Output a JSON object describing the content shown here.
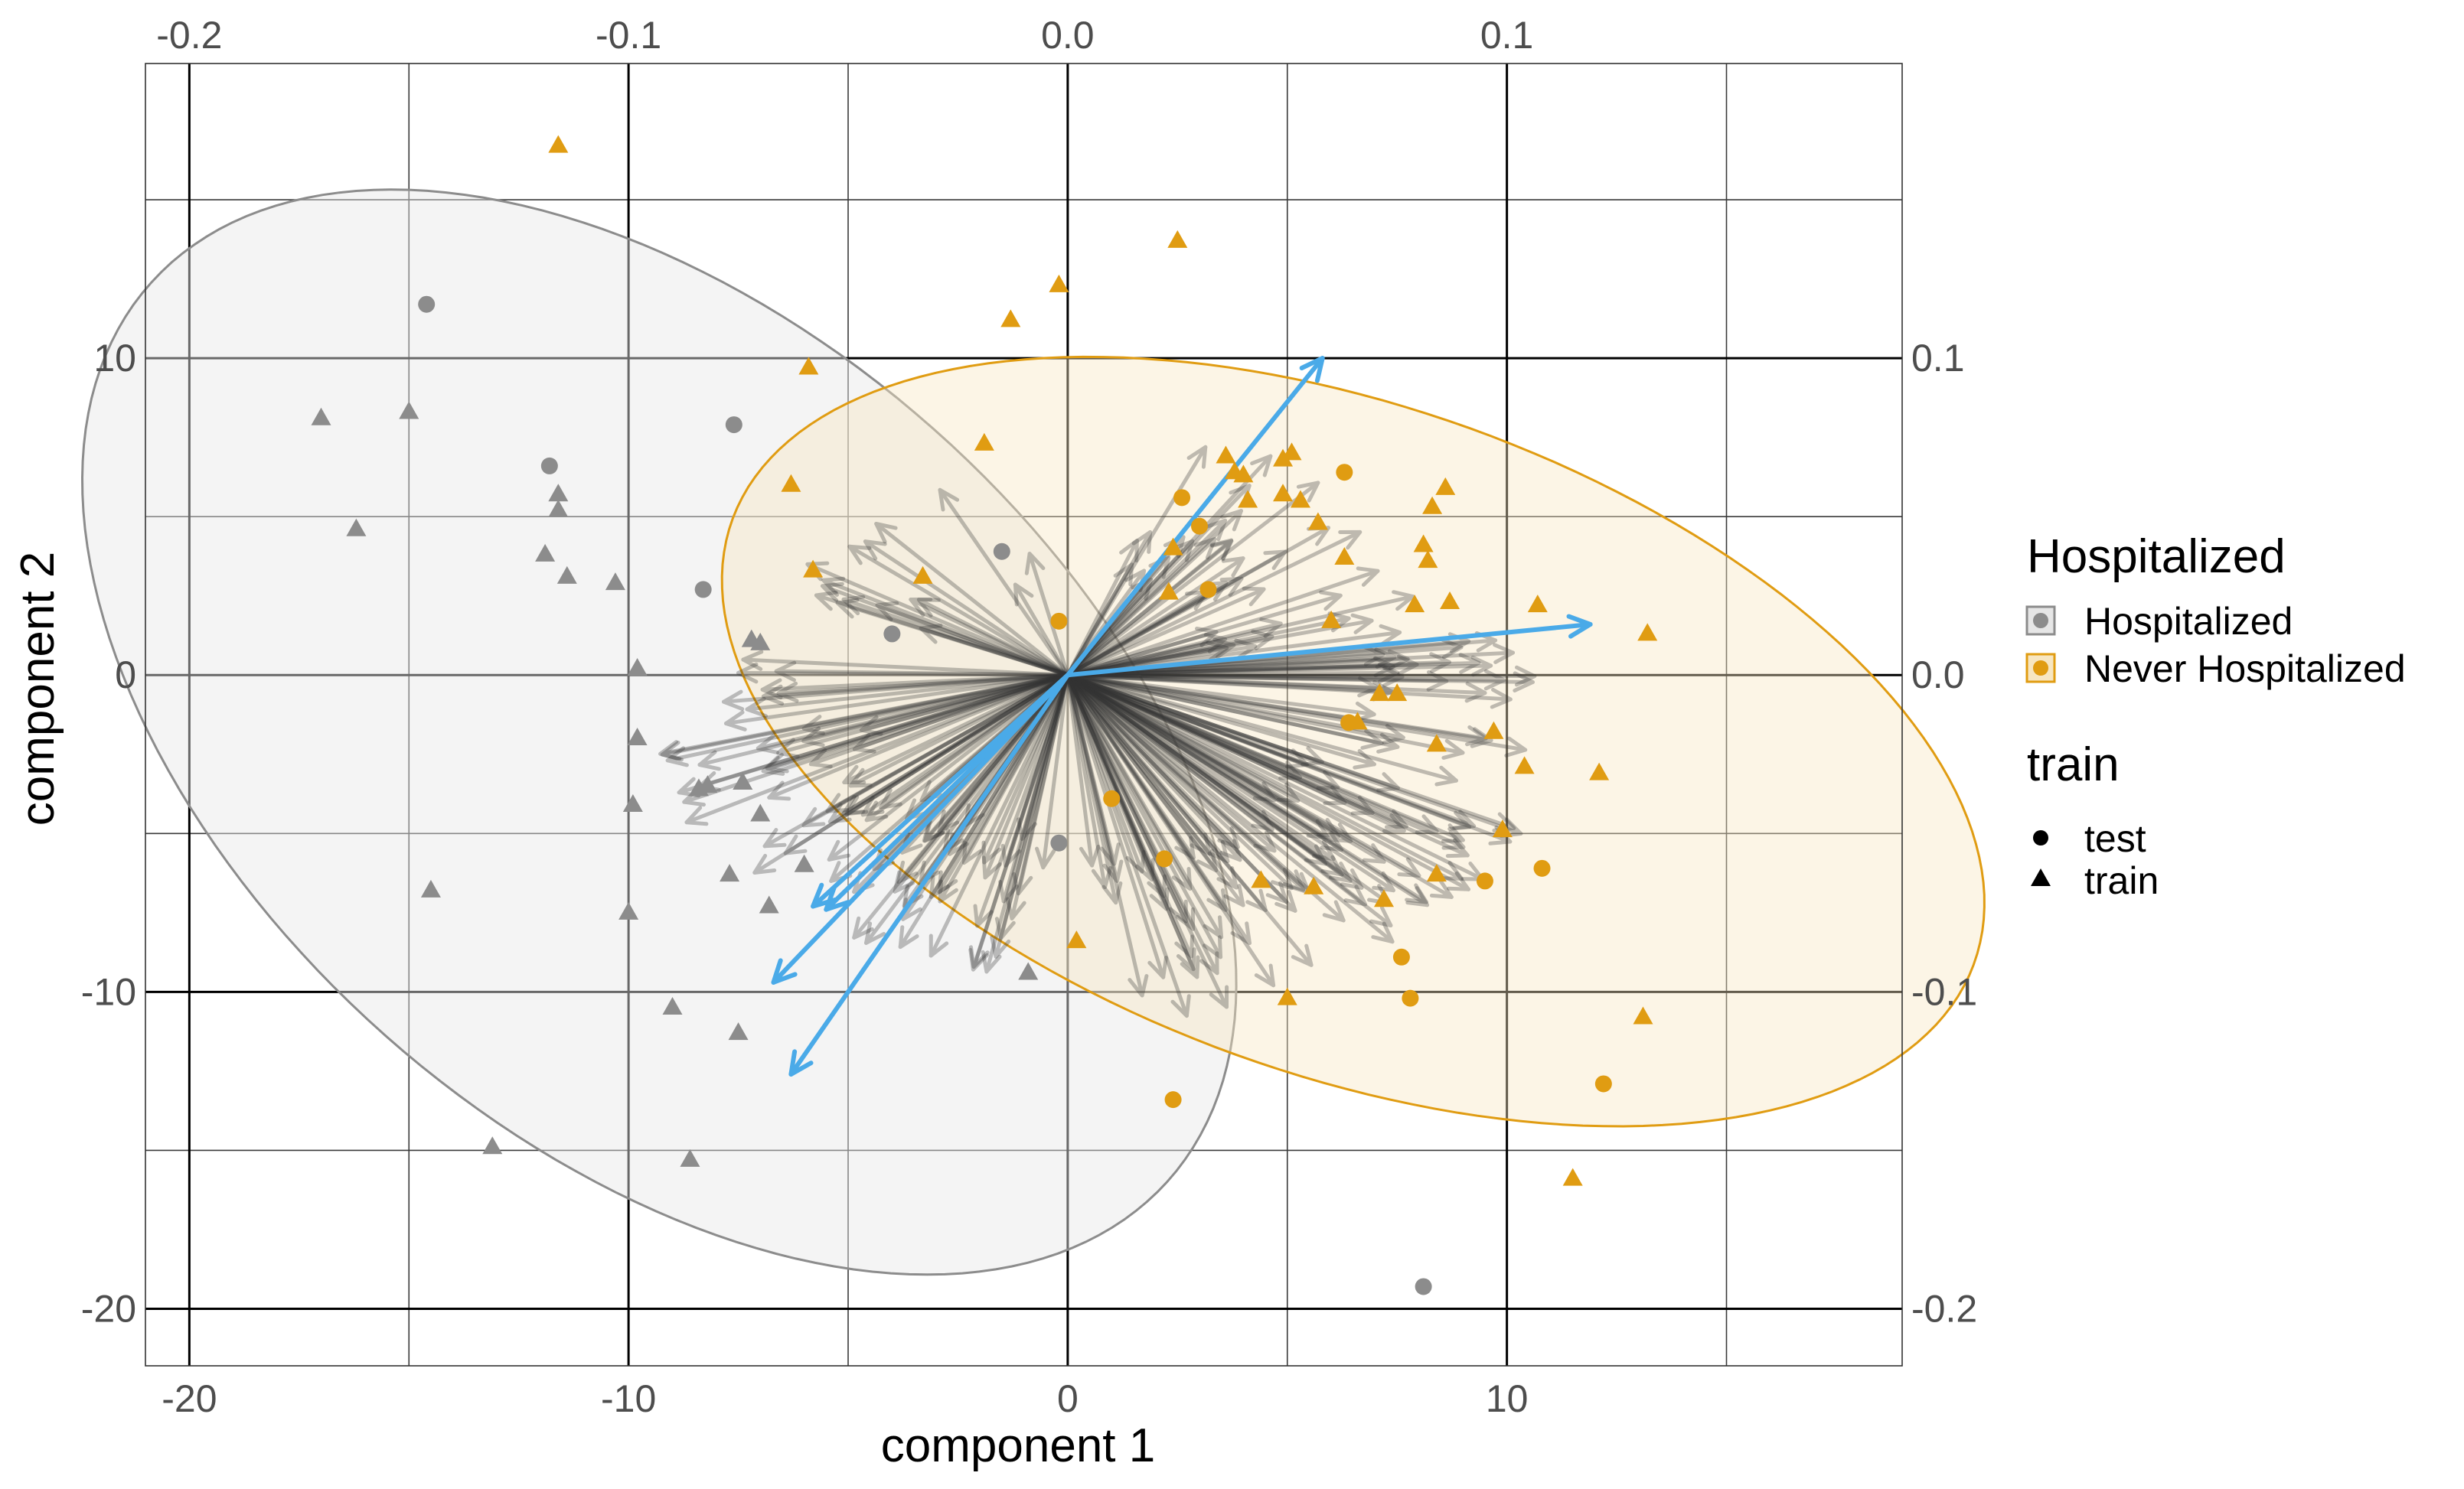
{
  "chart_data": {
    "type": "scatter",
    "subtype": "biplot",
    "xlabel": "component 1",
    "ylabel": "component 2",
    "xlim": [
      -21,
      19
    ],
    "ylim": [
      -21.8,
      19.3
    ],
    "x_ticks": [
      -20,
      -10,
      0,
      10
    ],
    "y_ticks": [
      -20,
      -10,
      0,
      10
    ],
    "x_tick_labels": [
      "-20",
      "-10",
      "0",
      "10"
    ],
    "y_tick_labels": [
      "-20",
      "-10",
      "0",
      "10"
    ],
    "top_axis": {
      "scale": 100,
      "ticks": [
        -0.2,
        -0.1,
        0.0,
        0.1
      ],
      "tick_labels": [
        "-0.2",
        "-0.1",
        "0.0",
        "0.1"
      ]
    },
    "right_axis": {
      "scale": 100,
      "ticks": [
        0.1,
        0.0,
        -0.1,
        -0.2
      ],
      "tick_labels": [
        "0.1",
        "0.0",
        "-0.1",
        "-0.2"
      ]
    },
    "grid": true,
    "legend": {
      "placement": "right",
      "color_title": "Hospitalized",
      "color_entries": [
        {
          "label": "Hospitalized",
          "color": "#8c8c8c"
        },
        {
          "label": "Never Hospitalized",
          "color": "#e09c12"
        }
      ],
      "shape_title": "train",
      "shape_entries": [
        {
          "label": "test",
          "shape": "circle"
        },
        {
          "label": "train",
          "shape": "triangle"
        }
      ]
    },
    "colors": {
      "hospitalized": "#8c8c8c",
      "never_hospitalized": "#e09c12",
      "ellipse_hospitalized_fill": "#e6e6e6",
      "ellipse_never_fill": "#f7e6c1",
      "ellipse_never_stroke": "#e09c12",
      "ellipse_hospitalized_stroke": "#8c8c8c",
      "loading_arrow": "#333333",
      "highlight_arrow": "#4aaae8"
    },
    "ellipses": [
      {
        "group": "Hospitalized",
        "center": [
          -9.3,
          -1.8
        ],
        "semi_axes": [
          18.8,
          10.6
        ],
        "angle_deg": -60
      },
      {
        "group": "Never Hospitalized",
        "center": [
          6.5,
          -2.1
        ],
        "semi_axes": [
          16.0,
          9.9
        ],
        "angle_deg": -34
      }
    ],
    "series": [
      {
        "name": "Hospitalized",
        "test": [
          [
            -14.6,
            11.7
          ],
          [
            -7.6,
            7.9
          ],
          [
            -11.8,
            6.6
          ],
          [
            -8.3,
            2.7
          ],
          [
            -1.5,
            3.9
          ],
          [
            -4.0,
            1.3
          ],
          [
            -0.2,
            -5.3
          ],
          [
            8.1,
            -19.3
          ]
        ],
        "train": [
          [
            -17.0,
            8.1
          ],
          [
            -15.0,
            8.3
          ],
          [
            -16.2,
            4.6
          ],
          [
            -11.6,
            5.7
          ],
          [
            -11.6,
            5.2
          ],
          [
            -11.9,
            3.8
          ],
          [
            -11.4,
            3.1
          ],
          [
            -10.3,
            2.9
          ],
          [
            -7.2,
            1.1
          ],
          [
            -7.0,
            1.0
          ],
          [
            -9.8,
            0.2
          ],
          [
            -9.8,
            -2.0
          ],
          [
            -9.9,
            -4.1
          ],
          [
            -8.4,
            -3.6
          ],
          [
            -8.2,
            -3.5
          ],
          [
            -7.4,
            -3.4
          ],
          [
            -7.0,
            -4.4
          ],
          [
            -7.7,
            -6.3
          ],
          [
            -6.0,
            -6.0
          ],
          [
            -6.8,
            -7.3
          ],
          [
            -10.0,
            -7.5
          ],
          [
            -14.5,
            -6.8
          ],
          [
            -9.0,
            -10.5
          ],
          [
            -7.5,
            -11.3
          ],
          [
            -0.9,
            -9.4
          ],
          [
            -13.1,
            -14.9
          ],
          [
            -8.6,
            -15.3
          ]
        ]
      },
      {
        "name": "Never Hospitalized",
        "test": [
          [
            -0.2,
            1.7
          ],
          [
            2.6,
            5.6
          ],
          [
            3.0,
            4.7
          ],
          [
            6.3,
            6.4
          ],
          [
            3.2,
            2.7
          ],
          [
            1.0,
            -3.9
          ],
          [
            2.2,
            -5.8
          ],
          [
            9.5,
            -6.5
          ],
          [
            10.8,
            -6.1
          ],
          [
            7.6,
            -8.9
          ],
          [
            7.8,
            -10.2
          ],
          [
            2.4,
            -13.4
          ],
          [
            12.2,
            -12.9
          ],
          [
            6.4,
            -1.5
          ]
        ],
        "train": [
          [
            -11.6,
            16.7
          ],
          [
            2.5,
            13.7
          ],
          [
            -0.2,
            12.3
          ],
          [
            -1.3,
            11.2
          ],
          [
            -5.9,
            9.7
          ],
          [
            -1.9,
            7.3
          ],
          [
            -6.3,
            6.0
          ],
          [
            -5.8,
            3.3
          ],
          [
            -3.3,
            3.1
          ],
          [
            3.6,
            6.9
          ],
          [
            3.8,
            6.4
          ],
          [
            4.0,
            6.3
          ],
          [
            4.9,
            6.8
          ],
          [
            5.1,
            7.0
          ],
          [
            4.9,
            5.7
          ],
          [
            5.3,
            5.5
          ],
          [
            4.1,
            5.5
          ],
          [
            5.7,
            4.8
          ],
          [
            6.3,
            3.7
          ],
          [
            2.4,
            4.0
          ],
          [
            2.3,
            2.6
          ],
          [
            8.3,
            5.3
          ],
          [
            8.6,
            5.9
          ],
          [
            8.1,
            4.1
          ],
          [
            8.2,
            3.6
          ],
          [
            7.9,
            2.2
          ],
          [
            8.7,
            2.3
          ],
          [
            10.7,
            2.2
          ],
          [
            13.2,
            1.3
          ],
          [
            6.0,
            1.7
          ],
          [
            7.1,
            -0.6
          ],
          [
            7.5,
            -0.6
          ],
          [
            6.6,
            -1.5
          ],
          [
            9.7,
            -1.8
          ],
          [
            8.4,
            -2.2
          ],
          [
            10.4,
            -2.9
          ],
          [
            12.1,
            -3.1
          ],
          [
            9.9,
            -4.9
          ],
          [
            8.4,
            -6.3
          ],
          [
            4.4,
            -6.5
          ],
          [
            5.6,
            -6.7
          ],
          [
            7.2,
            -7.1
          ],
          [
            5.0,
            -10.2
          ],
          [
            13.1,
            -10.8
          ],
          [
            11.5,
            -15.9
          ],
          [
            0.2,
            -8.4
          ]
        ]
      }
    ],
    "loadings_scale": 100,
    "highlighted_loadings": [
      [
        0.058,
        0.1
      ],
      [
        0.119,
        0.016
      ],
      [
        -0.055,
        -0.074
      ],
      [
        -0.067,
        -0.097
      ],
      [
        -0.063,
        -0.126
      ],
      [
        -0.058,
        -0.073
      ]
    ]
  }
}
